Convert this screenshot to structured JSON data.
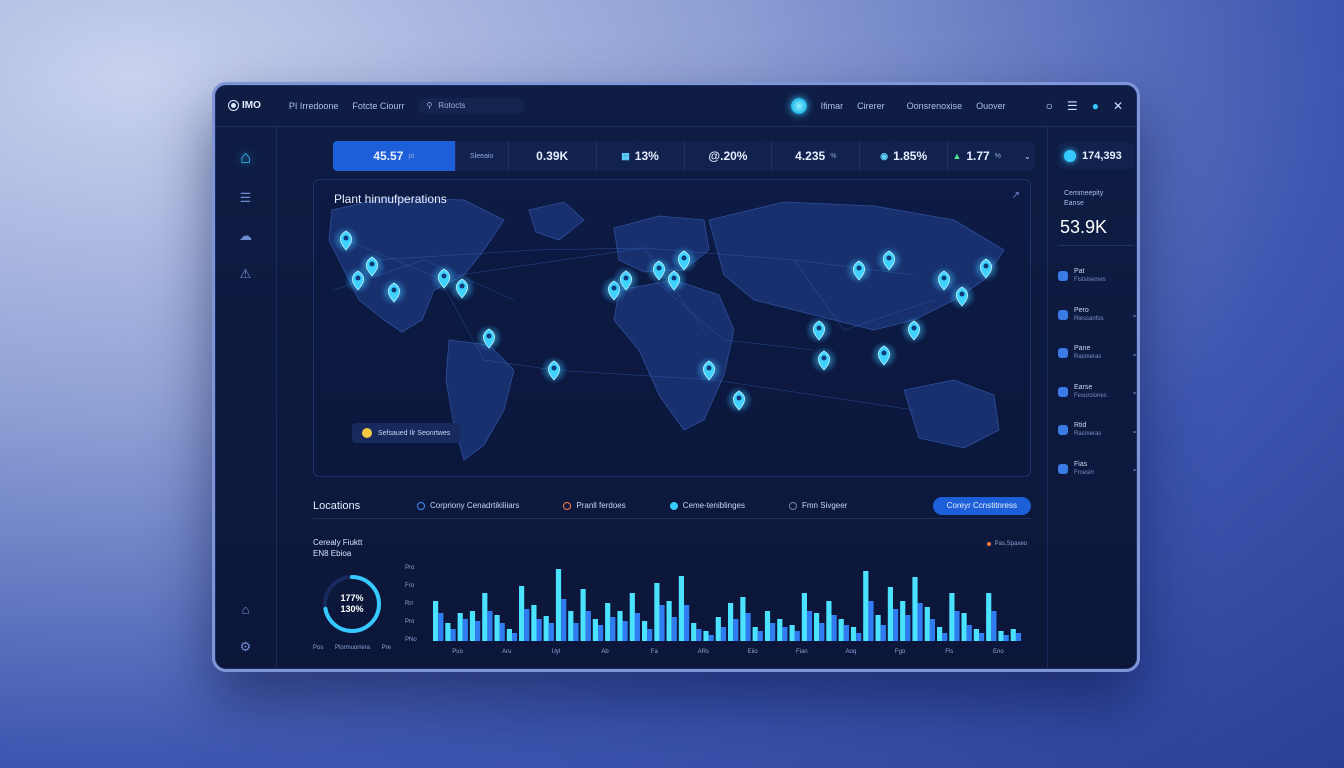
{
  "topbar": {
    "logo_text": "IMO",
    "title": "PI Irredoone",
    "link": "Fotcte Ciourr",
    "search_text": "Rotocts",
    "links_right": [
      "Ifimar",
      "Cirerer",
      "Oonsrenoxise",
      "Ouover"
    ]
  },
  "metrics": [
    {
      "value": "45.57",
      "unit": "pt",
      "label": "Sleeaio"
    },
    {
      "value": "0.39K",
      "unit": ""
    },
    {
      "value": "13%",
      "unit": ""
    },
    {
      "value": "@.20%",
      "unit": ""
    },
    {
      "value": "4.235",
      "unit": "%"
    },
    {
      "value": "1.85%",
      "unit": ""
    },
    {
      "value": "1.77",
      "unit": "%"
    }
  ],
  "map": {
    "title": "Plant hinnufperations",
    "legend": "Sefsaued Ilr Seonrtwes"
  },
  "locations": {
    "title": "Locations",
    "filters": [
      "Corpriony Cenadrtikiliiars",
      "Pranll ferdoes",
      "Ceme-teniblinges",
      "Fmn Sivgeer"
    ],
    "button": "Coreyr Ccnstitnress"
  },
  "capacity": {
    "title_1": "Cerealy Fiuktt",
    "title_2": "EN8 Ebioa",
    "gauge_line_1": "177%",
    "gauge_line_2": "130%",
    "gauge_value": 0.72,
    "foot": [
      "Pos",
      "Plormuorrera",
      "Pre"
    ]
  },
  "chart_data": {
    "type": "bar",
    "legend": "Pas,Spaxeo",
    "y_ticks": [
      "Pro",
      "Fro",
      "Rrr",
      "Pro",
      "PNo"
    ],
    "x_ticks": [
      "Puo",
      "Aru",
      "Uyl",
      "Ab",
      "Fa",
      "ARs",
      "Eiio",
      "Fian",
      "Aoq",
      "Fgo",
      "Fls",
      "Eno"
    ],
    "series": [
      {
        "color": "#4be2ff",
        "values": [
          40,
          18,
          28,
          30,
          48,
          26,
          12,
          55,
          36,
          25,
          72,
          30,
          52,
          22,
          38,
          30,
          48,
          20,
          58,
          40,
          65,
          18,
          10,
          24,
          38,
          44,
          14,
          30,
          22,
          16,
          48,
          28,
          40,
          22,
          14,
          70,
          26,
          54,
          40,
          64,
          34,
          14,
          48,
          28,
          12,
          48,
          10,
          12
        ]
      },
      {
        "color": "#2f7df0",
        "values": [
          28,
          12,
          22,
          20,
          30,
          18,
          8,
          32,
          22,
          18,
          42,
          18,
          30,
          16,
          24,
          20,
          28,
          12,
          36,
          24,
          36,
          12,
          6,
          14,
          22,
          28,
          10,
          18,
          14,
          10,
          30,
          18,
          26,
          16,
          8,
          40,
          16,
          32,
          26,
          38,
          22,
          8,
          30,
          16,
          8,
          30,
          6,
          8
        ]
      }
    ]
  },
  "right_panel": {
    "metric": "174,393",
    "caption_1": "Cemmeepity",
    "caption_2": "Eanse",
    "big_value": "53.9K",
    "items": [
      {
        "title": "Pat",
        "sub": "Fistsisemes"
      },
      {
        "title": "Pero",
        "sub": "Rlessanfos"
      },
      {
        "title": "Pane",
        "sub": "Rasmeras"
      },
      {
        "title": "Earse",
        "sub": "Fesurciones"
      },
      {
        "title": "Rtid",
        "sub": "Rasmeras"
      },
      {
        "title": "Fias",
        "sub": "Frcesirr"
      }
    ]
  },
  "icons": [
    "home-icon",
    "list-icon",
    "cloud-icon",
    "alert-icon",
    "settings-icon",
    "help-icon"
  ]
}
